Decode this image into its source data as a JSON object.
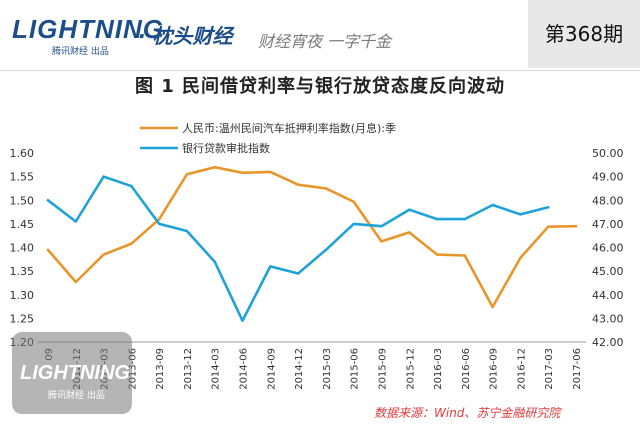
{
  "header": {
    "brand": "LIGHTNING",
    "brand_sub": "腾讯财经 出品",
    "brand_cn": "· 枕头财经",
    "slogan": "财经宵夜 一字千金",
    "issue": "第368期"
  },
  "source": "数据来源：Wind、苏宁金融研究院",
  "watermark": {
    "brand": "LIGHTNING",
    "sub": "腾讯财经 出品"
  },
  "chart_data": {
    "type": "line",
    "title": "图 1  民间借贷利率与银行放贷态度反向波动",
    "categories": [
      "2012-09",
      "2012-12",
      "2013-03",
      "2013-06",
      "2013-09",
      "2013-12",
      "2014-03",
      "2014-06",
      "2014-09",
      "2014-12",
      "2015-03",
      "2015-06",
      "2015-09",
      "2015-12",
      "2016-03",
      "2016-06",
      "2016-09",
      "2016-12",
      "2017-03",
      "2017-06"
    ],
    "category_labels": [
      "09",
      "2012-12",
      "2013-03",
      "2013-06",
      "2013-09",
      "2013-12",
      "2014-03",
      "2014-06",
      "2014-09",
      "2014-12",
      "2015-03",
      "2015-06",
      "2015-09",
      "2015-12",
      "2016-03",
      "2016-06",
      "2016-09",
      "2016-12",
      "2017-03",
      "2017-06"
    ],
    "ylim_left": [
      1.2,
      1.6
    ],
    "yticks_left": [
      "1.20",
      "1.25",
      "1.30",
      "1.35",
      "1.40",
      "1.45",
      "1.50",
      "1.55",
      "1.60"
    ],
    "ylim_right": [
      42.0,
      50.0
    ],
    "yticks_right": [
      "42.00",
      "43.00",
      "44.00",
      "45.00",
      "46.00",
      "47.00",
      "48.00",
      "49.00",
      "50.00"
    ],
    "series": [
      {
        "name": "人民币:温州民间汽车抵押利率指数(月息):季",
        "axis": "left",
        "color": "#e8962a",
        "values": [
          1.395,
          1.327,
          1.385,
          1.408,
          1.46,
          1.555,
          1.57,
          1.558,
          1.56,
          1.533,
          1.525,
          1.497,
          1.413,
          1.432,
          1.385,
          1.383,
          1.274,
          1.378,
          1.444,
          1.445
        ]
      },
      {
        "name": "银行贷款审批指数",
        "axis": "right",
        "color": "#1fa2d8",
        "values": [
          48.0,
          47.1,
          49.0,
          48.6,
          47.0,
          46.7,
          45.4,
          42.9,
          45.2,
          44.9,
          45.9,
          47.0,
          46.9,
          47.6,
          47.2,
          47.2,
          47.8,
          47.4,
          47.7,
          null
        ]
      }
    ],
    "legend_position": "top-center",
    "grid": false
  }
}
